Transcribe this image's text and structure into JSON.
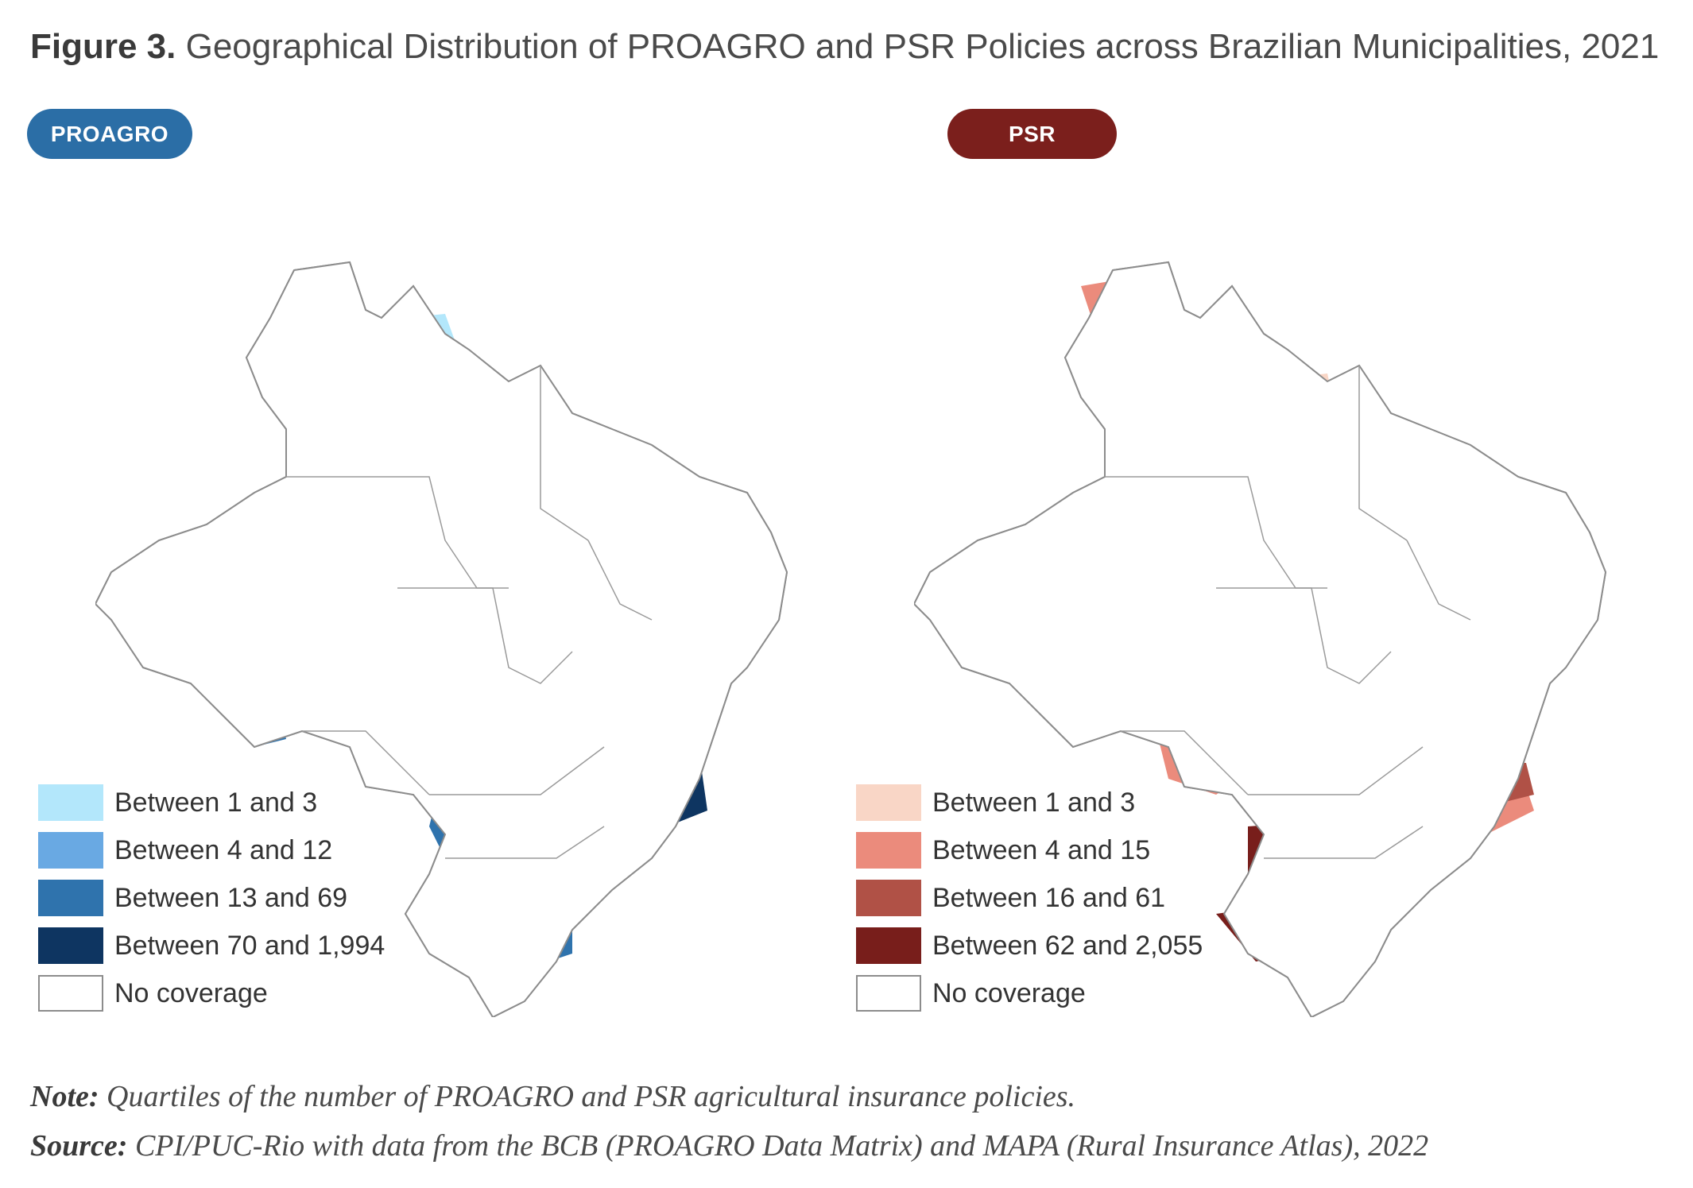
{
  "title": {
    "prefix": "Figure 3.",
    "text": "Geographical Distribution of PROAGRO and PSR Policies across Brazilian Municipalities, 2021"
  },
  "panels": [
    {
      "tag": "PROAGRO",
      "tag_color": "#2b6ea6",
      "legend": [
        {
          "label": "Between 1 and 3",
          "color": "#b3e7fb"
        },
        {
          "label": "Between 4 and 12",
          "color": "#69a9e3"
        },
        {
          "label": "Between 13 and 69",
          "color": "#2f73ad"
        },
        {
          "label": "Between 70 and 1,994",
          "color": "#0e3561"
        },
        {
          "label": "No coverage",
          "color": "#ffffff"
        }
      ]
    },
    {
      "tag": "PSR",
      "tag_color": "#7b1f1c",
      "legend": [
        {
          "label": "Between 1 and 3",
          "color": "#f9d6c6"
        },
        {
          "label": "Between 4 and 15",
          "color": "#eb8b7c"
        },
        {
          "label": "Between 16 and 61",
          "color": "#b05146"
        },
        {
          "label": "Between 62 and 2,055",
          "color": "#781e1b"
        },
        {
          "label": "No coverage",
          "color": "#ffffff"
        }
      ]
    }
  ],
  "note": {
    "label": "Note:",
    "text": "Quartiles of the number of PROAGRO and PSR agricultural insurance policies."
  },
  "source": {
    "label": "Source:",
    "text": "CPI/PUC-Rio with data from the BCB (PROAGRO Data Matrix) and MAPA (Rural Insurance Atlas), 2022"
  }
}
